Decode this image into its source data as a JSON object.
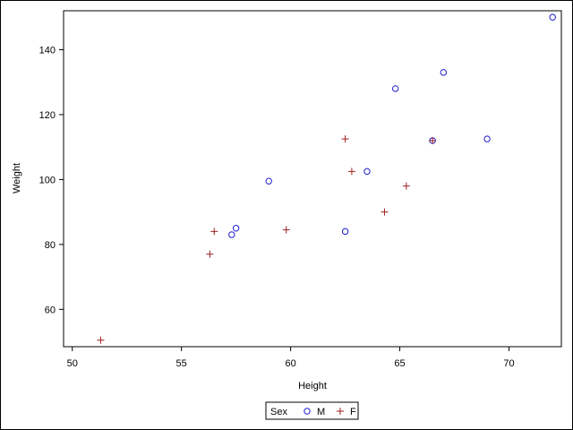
{
  "chart_data": {
    "type": "scatter",
    "title": "",
    "xlabel": "Height",
    "ylabel": "Weight",
    "xlim": [
      49.6,
      72.4
    ],
    "ylim": [
      48.5,
      152.0
    ],
    "x_ticks": [
      50,
      55,
      60,
      65,
      70
    ],
    "y_ticks": [
      60,
      80,
      100,
      120,
      140
    ],
    "grid": false,
    "legend": {
      "title": "Sex",
      "placement": "bottom-center"
    },
    "series": [
      {
        "name": "M",
        "marker": "circle",
        "color": "#1f1fcf",
        "points": [
          {
            "x": 57.3,
            "y": 83.0
          },
          {
            "x": 57.5,
            "y": 85.0
          },
          {
            "x": 59.0,
            "y": 99.5
          },
          {
            "x": 62.5,
            "y": 84.0
          },
          {
            "x": 63.5,
            "y": 102.5
          },
          {
            "x": 64.8,
            "y": 128.0
          },
          {
            "x": 66.5,
            "y": 112.0
          },
          {
            "x": 67.0,
            "y": 133.0
          },
          {
            "x": 69.0,
            "y": 112.5
          },
          {
            "x": 72.0,
            "y": 150.0
          }
        ]
      },
      {
        "name": "F",
        "marker": "plus",
        "color": "#a01e1e",
        "points": [
          {
            "x": 51.3,
            "y": 50.5
          },
          {
            "x": 56.3,
            "y": 77.0
          },
          {
            "x": 56.5,
            "y": 84.0
          },
          {
            "x": 59.8,
            "y": 84.5
          },
          {
            "x": 62.5,
            "y": 112.5
          },
          {
            "x": 62.8,
            "y": 102.5
          },
          {
            "x": 64.3,
            "y": 90.0
          },
          {
            "x": 65.3,
            "y": 98.0
          },
          {
            "x": 66.5,
            "y": 112.0
          }
        ]
      }
    ]
  }
}
